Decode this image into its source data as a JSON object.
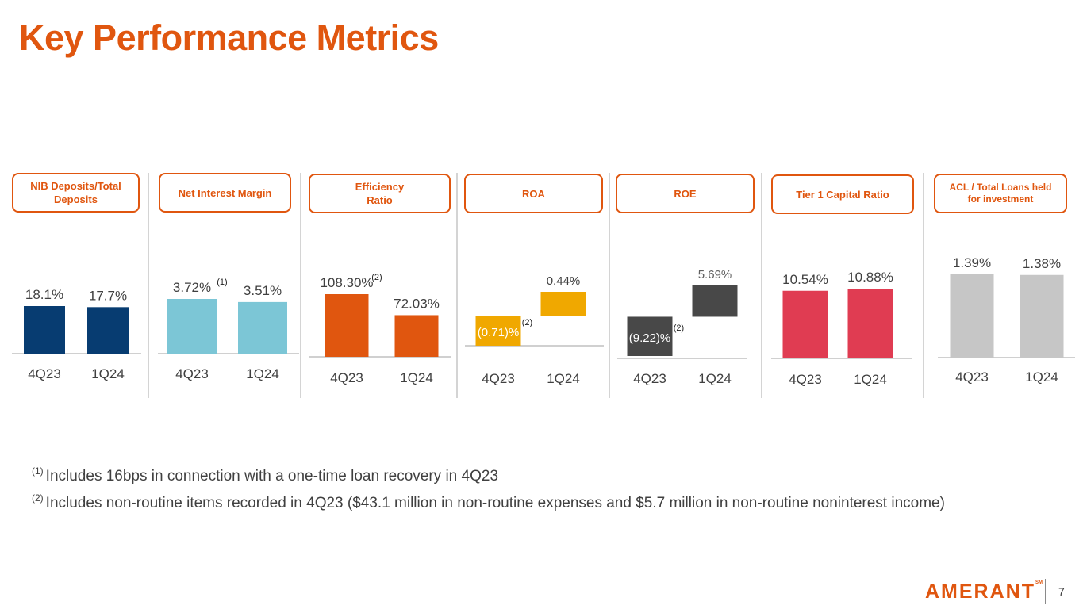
{
  "page": {
    "title": "Key Performance Metrics",
    "page_number": "7",
    "logo_text": "AMERANT",
    "logo_tm": "SM"
  },
  "footnotes": [
    {
      "marker": "(1)",
      "text": "Includes 16bps in connection with a one-time loan recovery in 4Q23"
    },
    {
      "marker": "(2)",
      "text": "Includes non-routine items recorded in 4Q23 ($43.1 million in non-routine expenses and $5.7 million in non-routine noninterest income)"
    }
  ],
  "chart_data": [
    {
      "type": "bar",
      "title": "NIB Deposits/Total Deposits",
      "categories": [
        "4Q23",
        "1Q24"
      ],
      "values": [
        18.1,
        17.7
      ],
      "value_labels": [
        "18.1%",
        "17.7%"
      ],
      "notes": [
        "",
        ""
      ],
      "color": "#073c71",
      "ylim": [
        0,
        18.1
      ]
    },
    {
      "type": "bar",
      "title": "Net Interest Margin",
      "categories": [
        "4Q23",
        "1Q24"
      ],
      "values": [
        3.72,
        3.51
      ],
      "value_labels": [
        "3.72%",
        "3.51%"
      ],
      "notes": [
        "(1)",
        ""
      ],
      "color": "#7cc6d6",
      "ylim": [
        0,
        3.72
      ]
    },
    {
      "type": "bar",
      "title": "Efficiency Ratio",
      "categories": [
        "4Q23",
        "1Q24"
      ],
      "values": [
        108.3,
        72.03
      ],
      "value_labels": [
        "108.30%",
        "72.03%"
      ],
      "notes": [
        "(2)",
        ""
      ],
      "color": "#e0560f",
      "ylim": [
        0,
        108.3
      ]
    },
    {
      "type": "bar",
      "title": "ROA",
      "categories": [
        "4Q23",
        "1Q24"
      ],
      "values": [
        -0.71,
        0.44
      ],
      "value_labels": [
        "(0.71)%",
        "0.44%"
      ],
      "notes": [
        "(2)",
        ""
      ],
      "color": "#f0a800",
      "ylim": [
        -0.71,
        0.44
      ]
    },
    {
      "type": "bar",
      "title": "ROE",
      "categories": [
        "4Q23",
        "1Q24"
      ],
      "values": [
        -9.22,
        5.69
      ],
      "value_labels": [
        "(9.22)%",
        "5.69%"
      ],
      "notes": [
        "(2)",
        ""
      ],
      "color": "#484848",
      "ylim": [
        -9.22,
        5.69
      ]
    },
    {
      "type": "bar",
      "title": "Tier 1 Capital Ratio",
      "categories": [
        "4Q23",
        "1Q24"
      ],
      "values": [
        10.54,
        10.88
      ],
      "value_labels": [
        "10.54%",
        "10.88%"
      ],
      "notes": [
        "",
        ""
      ],
      "color": "#e03c52",
      "ylim": [
        0,
        10.88
      ]
    },
    {
      "type": "bar",
      "title": "ACL / Total Loans held\nfor investment",
      "categories": [
        "4Q23",
        "1Q24"
      ],
      "values": [
        1.39,
        1.38
      ],
      "value_labels": [
        "1.39%",
        "1.38%"
      ],
      "notes": [
        "",
        ""
      ],
      "color": "#c6c6c6",
      "ylim": [
        0,
        1.39
      ]
    }
  ]
}
